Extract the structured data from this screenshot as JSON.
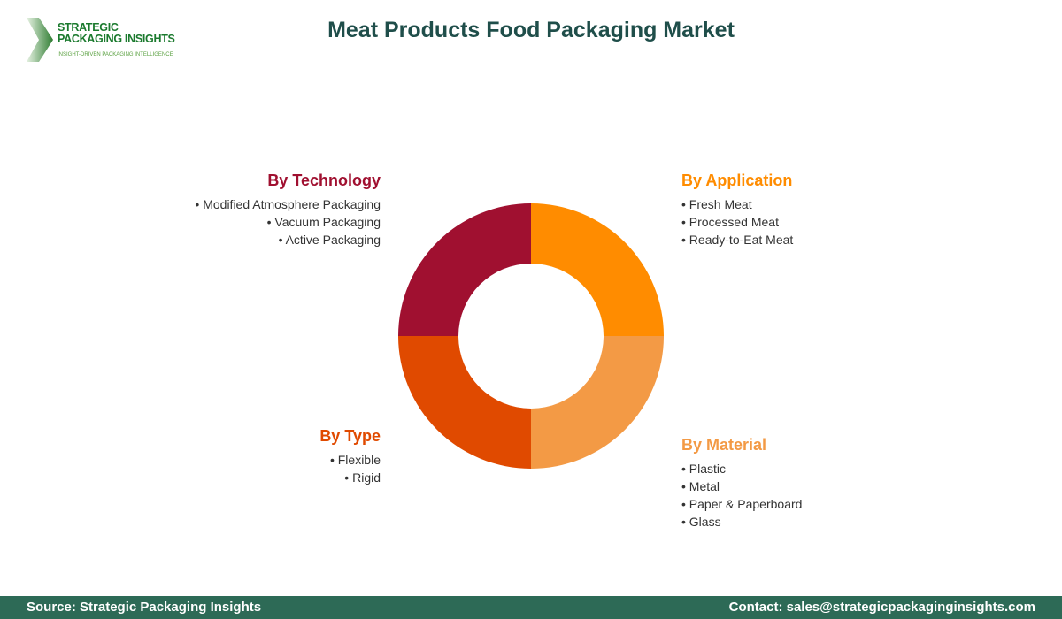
{
  "logo": {
    "line1": "STRATEGIC",
    "line2": "PACKAGING INSIGHTS",
    "tagline": "INSIGHT-DRIVEN PACKAGING INTELLIGENCE"
  },
  "title": "Meat Products Food Packaging Market",
  "chart_data": {
    "type": "pie",
    "donut": true,
    "title": "Meat Products Food Packaging Market",
    "categories": [
      "By Application",
      "By Material",
      "By Type",
      "By Technology"
    ],
    "values": [
      25,
      25,
      25,
      25
    ],
    "colors": [
      "#FF8C00",
      "#F39A45",
      "#E04A00",
      "#A01030"
    ]
  },
  "segments": [
    {
      "title": "By Technology",
      "color": "#A01030",
      "items": [
        "Modified Atmosphere Packaging",
        "Vacuum Packaging",
        "Active Packaging"
      ]
    },
    {
      "title": "By Application",
      "color": "#FF8C00",
      "items": [
        "Fresh Meat",
        "Processed Meat",
        "Ready-to-Eat Meat"
      ]
    },
    {
      "title": "By Type",
      "color": "#E04A00",
      "items": [
        "Flexible",
        "Rigid"
      ]
    },
    {
      "title": "By Material",
      "color": "#F39A45",
      "items": [
        "Plastic",
        "Metal",
        "Paper & Paperboard",
        "Glass"
      ]
    }
  ],
  "footer": {
    "source": "Source: Strategic Packaging Insights",
    "contact": "Contact: sales@strategicpackaginginsights.com"
  }
}
